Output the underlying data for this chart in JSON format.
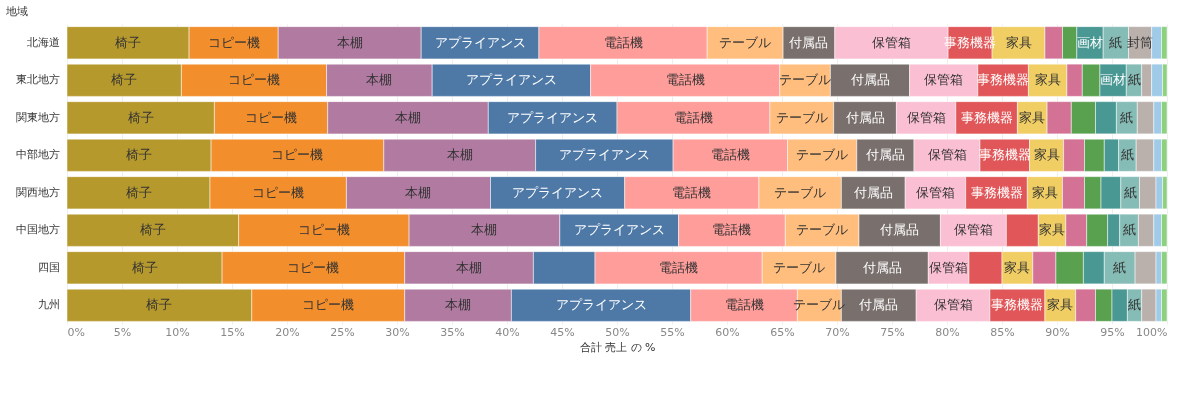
{
  "chart_data": {
    "type": "bar",
    "orientation": "horizontal",
    "stacked": true,
    "ylabel": "地域",
    "xlabel": "合計 売上 の %",
    "categories": [
      "北海道",
      "東北地方",
      "関東地方",
      "中部地方",
      "関西地方",
      "中国地方",
      "四国",
      "九州"
    ],
    "xlim": [
      0,
      100
    ],
    "xticks": [
      {
        "value": 0,
        "label": "0%"
      },
      {
        "value": 5,
        "label": "5%"
      },
      {
        "value": 10,
        "label": "10%"
      },
      {
        "value": 15,
        "label": "15%"
      },
      {
        "value": 20,
        "label": "20%"
      },
      {
        "value": 25,
        "label": "25%"
      },
      {
        "value": 30,
        "label": "30%"
      },
      {
        "value": 35,
        "label": "35%"
      },
      {
        "value": 40,
        "label": "40%"
      },
      {
        "value": 45,
        "label": "45%"
      },
      {
        "value": 50,
        "label": "50%"
      },
      {
        "value": 55,
        "label": "55%"
      },
      {
        "value": 60,
        "label": "60%"
      },
      {
        "value": 65,
        "label": "65%"
      },
      {
        "value": 70,
        "label": "70%"
      },
      {
        "value": 75,
        "label": "75%"
      },
      {
        "value": 80,
        "label": "80%"
      },
      {
        "value": 85,
        "label": "85%"
      },
      {
        "value": 90,
        "label": "90%"
      },
      {
        "value": 95,
        "label": "95%"
      },
      {
        "value": 100,
        "label": "100%"
      }
    ],
    "grid": "x",
    "legend": false,
    "series": [
      {
        "name": "椅子",
        "color": "#b6992d",
        "values": [
          11.1,
          10.4,
          13.4,
          13.1,
          13.0,
          15.6,
          14.1,
          16.8
        ]
      },
      {
        "name": "コピー機",
        "color": "#f28e2b",
        "values": [
          8.1,
          13.2,
          10.3,
          15.7,
          12.4,
          15.5,
          16.6,
          13.9
        ]
      },
      {
        "name": "本棚",
        "color": "#b07aa1",
        "values": [
          13.0,
          9.6,
          14.6,
          13.8,
          13.1,
          13.7,
          11.7,
          9.7
        ]
      },
      {
        "name": "アプライアンス",
        "color": "#4e79a7",
        "values": [
          10.7,
          14.4,
          11.7,
          12.5,
          12.2,
          10.8,
          5.6,
          16.3
        ]
      },
      {
        "name": "電話機",
        "color": "#ff9d9a",
        "values": [
          15.3,
          17.2,
          13.9,
          10.4,
          12.2,
          9.7,
          15.2,
          9.7
        ]
      },
      {
        "name": "テーブル",
        "color": "#ffbe7d",
        "values": [
          6.9,
          4.6,
          5.8,
          6.3,
          7.5,
          6.7,
          6.7,
          4.0
        ]
      },
      {
        "name": "付属品",
        "color": "#79706e",
        "values": [
          4.7,
          7.2,
          5.7,
          5.2,
          5.8,
          7.4,
          8.4,
          6.8
        ]
      },
      {
        "name": "保管箱",
        "color": "#fabfd2",
        "values": [
          10.3,
          6.2,
          5.4,
          6.0,
          5.5,
          6.0,
          3.7,
          6.7
        ]
      },
      {
        "name": "事務機器",
        "color": "#e15759",
        "values": [
          4.0,
          4.6,
          5.6,
          4.5,
          5.6,
          2.9,
          3.0,
          5.0
        ]
      },
      {
        "name": "家具",
        "color": "#f1ce63",
        "values": [
          4.8,
          3.5,
          2.7,
          3.1,
          3.2,
          2.5,
          2.8,
          2.8
        ]
      },
      {
        "color": "#d37295",
        "values": [
          1.6,
          1.4,
          2.2,
          1.9,
          2.0,
          1.9,
          2.1,
          1.8
        ]
      },
      {
        "color": "#59a14f",
        "values": [
          1.3,
          1.6,
          2.2,
          1.8,
          1.5,
          1.9,
          2.5,
          1.5
        ]
      },
      {
        "name": "画材",
        "color": "#499894",
        "values": [
          2.4,
          2.4,
          1.9,
          1.3,
          1.8,
          1.1,
          1.9,
          1.4
        ]
      },
      {
        "name": "紙",
        "color": "#86bcb6",
        "values": [
          2.3,
          1.4,
          1.9,
          1.6,
          1.7,
          1.7,
          2.8,
          1.3
        ]
      },
      {
        "name": "封筒",
        "color": "#bab0ac",
        "values": [
          2.1,
          0.9,
          1.5,
          1.6,
          1.5,
          1.4,
          1.9,
          1.3
        ]
      },
      {
        "color": "#a0cbe8",
        "values": [
          0.9,
          1.0,
          0.7,
          0.7,
          0.6,
          0.7,
          0.5,
          0.5
        ]
      },
      {
        "color": "#8cd17d",
        "values": [
          0.5,
          0.4,
          0.5,
          0.5,
          0.4,
          0.5,
          0.5,
          0.5
        ]
      }
    ]
  }
}
